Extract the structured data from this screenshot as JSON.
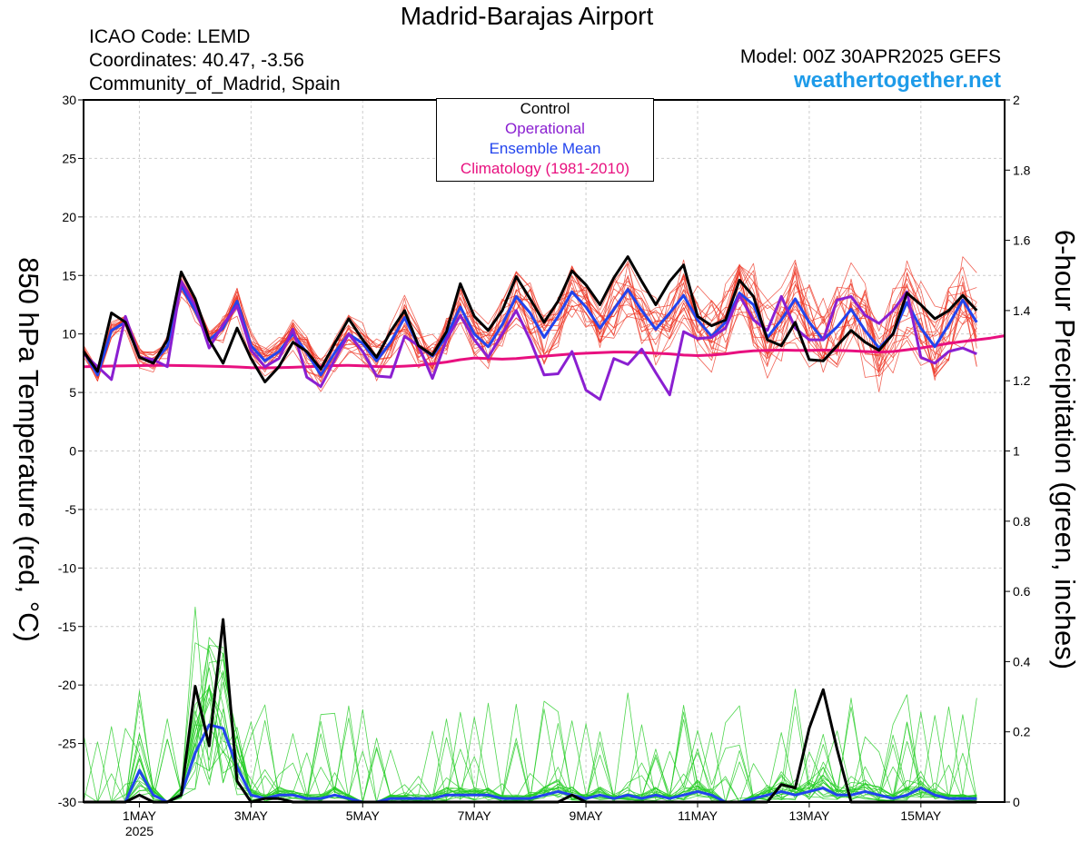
{
  "header": {
    "title": "Madrid-Barajas Airport",
    "icao": "ICAO Code: LEMD",
    "coords": "Coordinates: 40.47, -3.56",
    "region": "Community_of_Madrid, Spain",
    "model": "Model: 00Z 30APR2025 GEFS",
    "site": "weathertogether.net"
  },
  "colors": {
    "control": "#000000",
    "operational": "#8a1fd1",
    "ensemble_mean": "#2244ee",
    "climatology": "#e8107f",
    "temp_members": "#ee3322",
    "precip_members": "#22cc22",
    "site": "#1e9be9"
  },
  "chart_data": {
    "type": "line",
    "ylabel": "850 hPa Temperature (red, °C)",
    "y2label": "6-hour Precipitation (green, inches)",
    "ylim": [
      -30,
      30
    ],
    "y2lim": [
      0,
      2
    ],
    "yticks": [
      "30",
      "25",
      "20",
      "15",
      "10",
      "5",
      "0",
      "-5",
      "-10",
      "-15",
      "-20",
      "-25",
      "-30"
    ],
    "y2ticks": [
      "2",
      "1.8",
      "1.6",
      "1.4",
      "1.2",
      "1",
      "0.8",
      "0.6",
      "0.4",
      "0.2",
      "0"
    ],
    "xlim": [
      0,
      66
    ],
    "xticks": [
      {
        "at": 4,
        "label": "1MAY",
        "sub": "2025"
      },
      {
        "at": 12,
        "label": "3MAY"
      },
      {
        "at": 20,
        "label": "5MAY"
      },
      {
        "at": 28,
        "label": "7MAY"
      },
      {
        "at": 36,
        "label": "9MAY"
      },
      {
        "at": 44,
        "label": "11MAY"
      },
      {
        "at": 52,
        "label": "13MAY"
      },
      {
        "at": 60,
        "label": "15MAY"
      }
    ],
    "x_units": "6-hour steps from 00Z 30APR2025",
    "legend": [
      "Control",
      "Operational",
      "Ensemble Mean",
      "Climatology (1981-2010)"
    ],
    "legend_placement": "top-center",
    "temp_control": [
      8.5,
      6.8,
      11.8,
      11.0,
      8.0,
      7.5,
      9.5,
      15.3,
      13.0,
      9.5,
      7.5,
      10.5,
      7.9,
      5.9,
      7.2,
      9.3,
      8.5,
      7.0,
      9.2,
      11.3,
      9.5,
      8.0,
      10.2,
      12.0,
      9.0,
      8.2,
      10.2,
      14.3,
      11.5,
      10.3,
      12.0,
      14.9,
      13.0,
      11.0,
      12.8,
      15.4,
      14.2,
      12.5,
      14.8,
      16.6,
      14.5,
      12.5,
      14.5,
      15.9,
      11.5,
      10.7,
      11.2,
      14.6,
      13.2,
      9.5,
      9.0,
      11.0,
      7.8,
      7.7,
      9.0,
      10.3,
      9.3,
      8.6,
      10.0,
      13.5,
      12.5,
      11.3,
      12.0,
      13.3,
      12.0
    ],
    "temp_ens_mean": [
      8.5,
      6.5,
      10.3,
      11.0,
      8.0,
      7.6,
      8.9,
      14.1,
      12.0,
      9.5,
      10.5,
      12.8,
      9.0,
      7.7,
      8.5,
      10.0,
      8.4,
      6.5,
      8.4,
      10.0,
      9.2,
      7.7,
      9.3,
      11.4,
      9.0,
      8.1,
      9.8,
      12.3,
      10.0,
      8.9,
      10.8,
      13.2,
      11.8,
      9.7,
      11.5,
      13.6,
      12.3,
      10.5,
      12.1,
      13.8,
      12.0,
      10.4,
      11.8,
      13.3,
      11.2,
      9.8,
      11.0,
      13.5,
      12.5,
      9.7,
      11.2,
      13.0,
      11.0,
      9.5,
      10.6,
      12.1,
      10.3,
      8.8,
      10.0,
      12.7,
      10.5,
      8.9,
      10.8,
      12.9,
      11.0
    ],
    "temp_operational": [
      8.3,
      7.2,
      6.1,
      11.5,
      8.0,
      7.8,
      7.2,
      14.5,
      12.4,
      8.8,
      10.8,
      12.4,
      8.6,
      7.2,
      7.9,
      10.4,
      6.3,
      5.5,
      7.8,
      10.0,
      8.5,
      6.4,
      6.3,
      9.8,
      9.0,
      6.2,
      9.5,
      11.6,
      9.5,
      8.0,
      10.0,
      12.0,
      9.5,
      6.5,
      6.6,
      8.5,
      5.2,
      4.4,
      7.9,
      7.4,
      8.7,
      6.7,
      4.8,
      10.2,
      9.6,
      9.7,
      10.5,
      13.3,
      11.2,
      10.3,
      13.2,
      10.5,
      9.5,
      9.5,
      12.9,
      13.2,
      11.6,
      10.9,
      12.0,
      13.6,
      8.0,
      7.5,
      8.5,
      8.8,
      8.3
    ],
    "temp_climatology": [
      7.2,
      7.23,
      7.26,
      7.28,
      7.3,
      7.31,
      7.32,
      7.3,
      7.28,
      7.25,
      7.22,
      7.18,
      7.12,
      7.1,
      7.12,
      7.15,
      7.2,
      7.25,
      7.3,
      7.32,
      7.28,
      7.22,
      7.2,
      7.25,
      7.32,
      7.45,
      7.6,
      7.8,
      7.95,
      7.9,
      7.85,
      7.9,
      8.0,
      8.1,
      8.2,
      8.3,
      8.35,
      8.4,
      8.45,
      8.45,
      8.4,
      8.35,
      8.3,
      8.2,
      8.15,
      8.2,
      8.3,
      8.45,
      8.55,
      8.6,
      8.62,
      8.6,
      8.6,
      8.62,
      8.6,
      8.55,
      8.5,
      8.45,
      8.5,
      8.65,
      8.8,
      9.0,
      9.2,
      9.35,
      9.5,
      9.65,
      9.85
    ],
    "precip_control": [
      0.0,
      0.0,
      0.0,
      0.0,
      0.02,
      0.0,
      0.0,
      0.02,
      0.33,
      0.16,
      0.52,
      0.06,
      0.0,
      0.01,
      0.01,
      0.0,
      0.0,
      0.0,
      0.0,
      0.0,
      0.0,
      0.0,
      0.0,
      0.0,
      0.0,
      0.0,
      0.0,
      0.0,
      0.0,
      0.0,
      0.0,
      0.0,
      0.0,
      0.0,
      0.0,
      0.02,
      0.0,
      0.0,
      0.0,
      0.0,
      0.0,
      0.0,
      0.0,
      0.0,
      0.0,
      0.0,
      0.0,
      0.0,
      0.0,
      0.0,
      0.05,
      0.04,
      0.21,
      0.32,
      0.15,
      0.0,
      0.0,
      0.0,
      0.0,
      0.0,
      0.0,
      0.0,
      0.0,
      0.0,
      0.0
    ],
    "precip_ens_mean": [
      0.0,
      0.0,
      0.0,
      0.0,
      0.09,
      0.02,
      0.0,
      0.02,
      0.14,
      0.22,
      0.21,
      0.1,
      0.02,
      0.01,
      0.02,
      0.02,
      0.01,
      0.01,
      0.02,
      0.01,
      0.0,
      0.0,
      0.01,
      0.01,
      0.01,
      0.01,
      0.02,
      0.02,
      0.02,
      0.02,
      0.01,
      0.01,
      0.01,
      0.02,
      0.03,
      0.02,
      0.01,
      0.02,
      0.01,
      0.02,
      0.01,
      0.02,
      0.01,
      0.02,
      0.03,
      0.02,
      0.0,
      0.0,
      0.01,
      0.02,
      0.03,
      0.02,
      0.03,
      0.04,
      0.02,
      0.02,
      0.03,
      0.02,
      0.01,
      0.02,
      0.04,
      0.02,
      0.01,
      0.01,
      0.01
    ]
  }
}
